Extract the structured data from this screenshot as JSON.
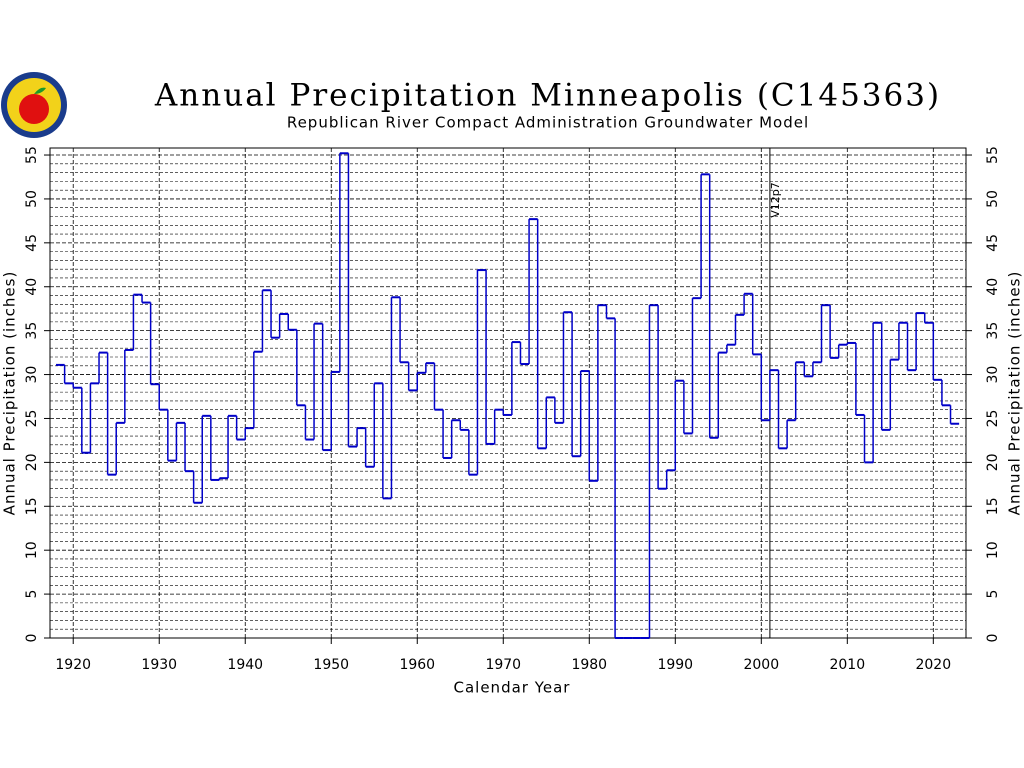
{
  "chart_data": {
    "type": "step",
    "title": "Annual Precipitation Minneapolis (C145363)",
    "subtitle": "Republican River Compact Administration Groundwater Model",
    "x_label": "Calendar Year",
    "y_label": "Annual Precipitation (inches)",
    "y2_label": "Annual Precipitation (inches)",
    "annotation": {
      "label": "V12p7",
      "x": 2001
    },
    "color": "#0000c8",
    "x": [
      1918,
      1919,
      1920,
      1921,
      1922,
      1923,
      1924,
      1925,
      1926,
      1927,
      1928,
      1929,
      1930,
      1931,
      1932,
      1933,
      1934,
      1935,
      1936,
      1937,
      1938,
      1939,
      1940,
      1941,
      1942,
      1943,
      1944,
      1945,
      1946,
      1947,
      1948,
      1949,
      1950,
      1951,
      1952,
      1953,
      1954,
      1955,
      1956,
      1957,
      1958,
      1959,
      1960,
      1961,
      1962,
      1963,
      1964,
      1965,
      1966,
      1967,
      1968,
      1969,
      1970,
      1971,
      1972,
      1973,
      1974,
      1975,
      1976,
      1977,
      1978,
      1979,
      1980,
      1981,
      1982,
      1983,
      1984,
      1985,
      1986,
      1987,
      1988,
      1989,
      1990,
      1991,
      1992,
      1993,
      1994,
      1995,
      1996,
      1997,
      1998,
      1999,
      2000,
      2001,
      2002,
      2003,
      2004,
      2005,
      2006,
      2007,
      2008,
      2009,
      2010,
      2011,
      2012,
      2013,
      2014,
      2015,
      2016,
      2017,
      2018,
      2019,
      2020,
      2021,
      2022
    ],
    "values": [
      31.1,
      29.0,
      28.5,
      21.1,
      29.0,
      32.5,
      18.6,
      24.5,
      32.8,
      39.1,
      38.2,
      28.9,
      26.0,
      20.2,
      24.5,
      19.0,
      15.4,
      25.3,
      18.0,
      18.2,
      25.3,
      22.6,
      23.9,
      32.6,
      39.6,
      34.2,
      36.9,
      35.1,
      26.5,
      22.6,
      35.8,
      21.4,
      30.3,
      55.2,
      21.8,
      23.9,
      19.5,
      29.0,
      15.9,
      38.8,
      31.4,
      28.2,
      30.2,
      31.3,
      26.0,
      20.5,
      24.8,
      23.7,
      18.6,
      41.9,
      22.1,
      26.0,
      25.4,
      33.7,
      31.2,
      47.7,
      21.6,
      27.4,
      24.5,
      37.1,
      20.7,
      30.4,
      17.9,
      37.9,
      36.4,
      0,
      0,
      0,
      0,
      37.9,
      17.0,
      19.1,
      29.3,
      23.3,
      38.7,
      52.8,
      22.8,
      32.5,
      33.4,
      36.8,
      39.2,
      32.3,
      24.8,
      30.5,
      21.6,
      24.8,
      31.4,
      29.8,
      31.4,
      37.9,
      31.9,
      33.4,
      33.6,
      25.4,
      20.0,
      35.9,
      23.7,
      31.7,
      35.9,
      30.5,
      37.0,
      35.9,
      29.4,
      26.5,
      24.4
    ],
    "xlim": [
      1917.3,
      2023.8
    ],
    "xticks": [
      1920,
      1930,
      1940,
      1950,
      1960,
      1970,
      1980,
      1990,
      2000,
      2010,
      2020
    ],
    "ylim": [
      0,
      55.8
    ],
    "yticks": [
      0,
      5,
      10,
      15,
      20,
      25,
      30,
      35,
      40,
      45,
      50,
      55
    ],
    "y2lim": [
      0,
      55.8
    ],
    "y2ticks": [
      0,
      5,
      10,
      15,
      20,
      25,
      30,
      35,
      40,
      45,
      50,
      55
    ],
    "yminor_ticks": [
      1,
      2,
      3,
      4,
      6,
      7,
      8,
      9,
      11,
      12,
      13,
      14,
      16,
      17,
      18,
      19,
      21,
      22,
      23,
      24,
      26,
      27,
      28,
      29,
      31,
      32,
      33,
      34,
      36,
      37,
      38,
      39,
      41,
      42,
      43,
      44,
      46,
      47,
      48,
      49,
      51,
      52,
      53,
      54
    ],
    "grid": true
  }
}
